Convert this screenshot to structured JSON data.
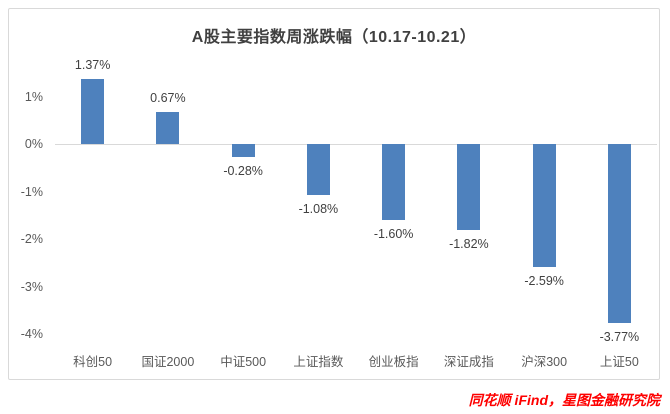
{
  "chart_data": {
    "type": "bar",
    "title": "A股主要指数周涨跌幅（10.17-10.21）",
    "categories": [
      "科创50",
      "国证2000",
      "中证500",
      "上证指数",
      "创业板指",
      "深证成指",
      "沪深300",
      "上证50"
    ],
    "values": [
      1.37,
      0.67,
      -0.28,
      -1.08,
      -1.6,
      -1.82,
      -2.59,
      -3.77
    ],
    "data_labels": [
      "1.37%",
      "0.67%",
      "-0.28%",
      "-1.08%",
      "-1.60%",
      "-1.82%",
      "-2.59%",
      "-3.77%"
    ],
    "xlabel": "",
    "ylabel": "",
    "y_tick_labels": [
      "1%",
      "0%",
      "-1%",
      "-2%",
      "-3%",
      "-4%"
    ],
    "y_tick_values": [
      1,
      0,
      -1,
      -2,
      -3,
      -4
    ],
    "ylim": [
      -4.3,
      1.6
    ],
    "grid": "zero-line-only",
    "legend": "none",
    "bar_color": "#4e81bd",
    "axis_line_color": "#d9d9d9",
    "title_color": "#404040",
    "data_label_color": "#404040",
    "tick_label_color": "#595959"
  },
  "footer": {
    "text": "同花顺 iFind，星图金融研究院",
    "color": "#fe0000"
  }
}
